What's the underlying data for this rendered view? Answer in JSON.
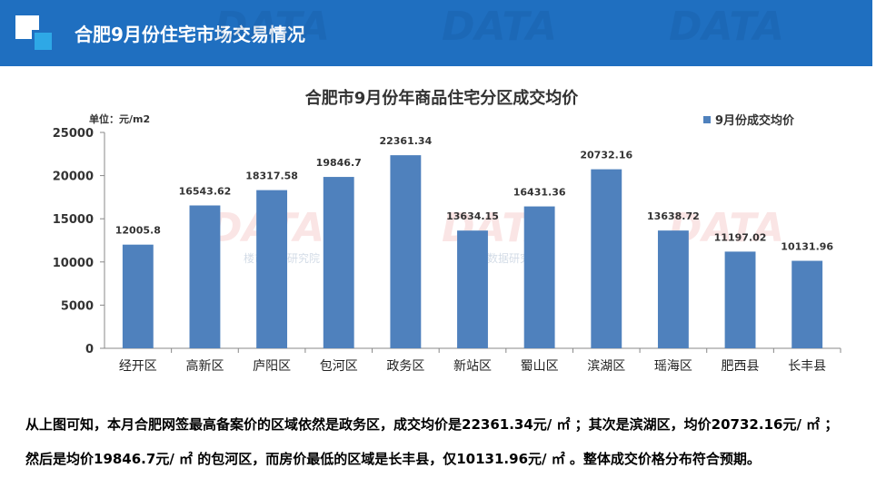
{
  "header": {
    "title": "合肥9月份住宅市场交易情况"
  },
  "watermark": {
    "text": "DATA",
    "subtext": "楼市数据研究院"
  },
  "chart_data": {
    "type": "bar",
    "title": "合肥市9月份年商品住宅分区成交均价",
    "unit_label": "单位：元/m2",
    "categories": [
      "经开区",
      "高新区",
      "庐阳区",
      "包河区",
      "政务区",
      "新站区",
      "蜀山区",
      "滨湖区",
      "瑶海区",
      "肥西县",
      "长丰县"
    ],
    "series": [
      {
        "name": "9月份成交均价",
        "values": [
          12005.8,
          16543.62,
          18317.58,
          19846.7,
          22361.34,
          13634.15,
          16431.36,
          20732.16,
          13638.72,
          11197.02,
          10131.96
        ],
        "labels": [
          "12005.8",
          "16543.62",
          "18317.58",
          "19846.7",
          "22361.34",
          "13634.15",
          "16431.36",
          "20732.16",
          "13638.72",
          "11197.02",
          "10131.96"
        ],
        "color": "#4f81bd"
      }
    ],
    "yticks": [
      0,
      5000,
      10000,
      15000,
      20000,
      25000
    ],
    "ylim": [
      0,
      25000
    ],
    "legend_position": "top-right",
    "xlabel": "",
    "ylabel": ""
  },
  "summary": {
    "line1": "从上图可知，本月合肥网签最高备案价的区域依然是政务区，成交均价是22361.34元/ ㎡ ；其次是滨湖区，均价20732.16元/ ㎡ ；",
    "line2": "然后是均价19846.7元/ ㎡ 的包河区，而房价最低的区域是长丰县，仅10131.96元/ ㎡ 。整体成交价格分布符合预期。"
  }
}
